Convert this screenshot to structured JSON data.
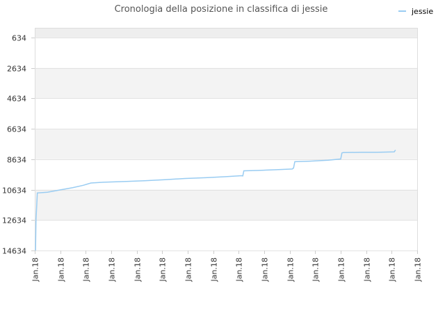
{
  "chart_data": {
    "type": "line",
    "title": "Cronologia della posizione in classifica di jessie",
    "xlabel": "",
    "ylabel": "",
    "y_inverted": true,
    "ylim": [
      14634,
      0
    ],
    "yticks": [
      634,
      2634,
      4634,
      6634,
      8634,
      10634,
      12634,
      14634
    ],
    "x_tick_labels": [
      "Jan.18",
      "Jan.18",
      "Jan.18",
      "Jan.18",
      "Jan.18",
      "Jan.18",
      "Jan.18",
      "Jan.18",
      "Jan.18",
      "Jan.18",
      "Jan.18",
      "Jan.18",
      "Jan.18",
      "Jan.18",
      "Jan.18",
      "Jan.18"
    ],
    "legend": {
      "position": "top-right"
    },
    "grid": true,
    "series": [
      {
        "name": "jessie",
        "color": "#99ccf2",
        "x_index": [
          0.03,
          0.05,
          0.1,
          0.5,
          1.0,
          1.5,
          1.9,
          2.2,
          2.7,
          3.5,
          4.3,
          5.1,
          5.9,
          6.7,
          7.5,
          8.1,
          8.16,
          8.2,
          8.8,
          9.4,
          10.1,
          10.15,
          10.2,
          10.8,
          11.5,
          12.0,
          12.05,
          12.1,
          12.8,
          13.4,
          14.1,
          14.15
        ],
        "values": [
          14634,
          12600,
          10850,
          10800,
          10650,
          10500,
          10350,
          10200,
          10150,
          10100,
          10050,
          9980,
          9900,
          9850,
          9780,
          9720,
          9730,
          9400,
          9370,
          9330,
          9280,
          9210,
          8800,
          8760,
          8700,
          8620,
          8220,
          8200,
          8180,
          8180,
          8150,
          8030
        ]
      }
    ]
  }
}
